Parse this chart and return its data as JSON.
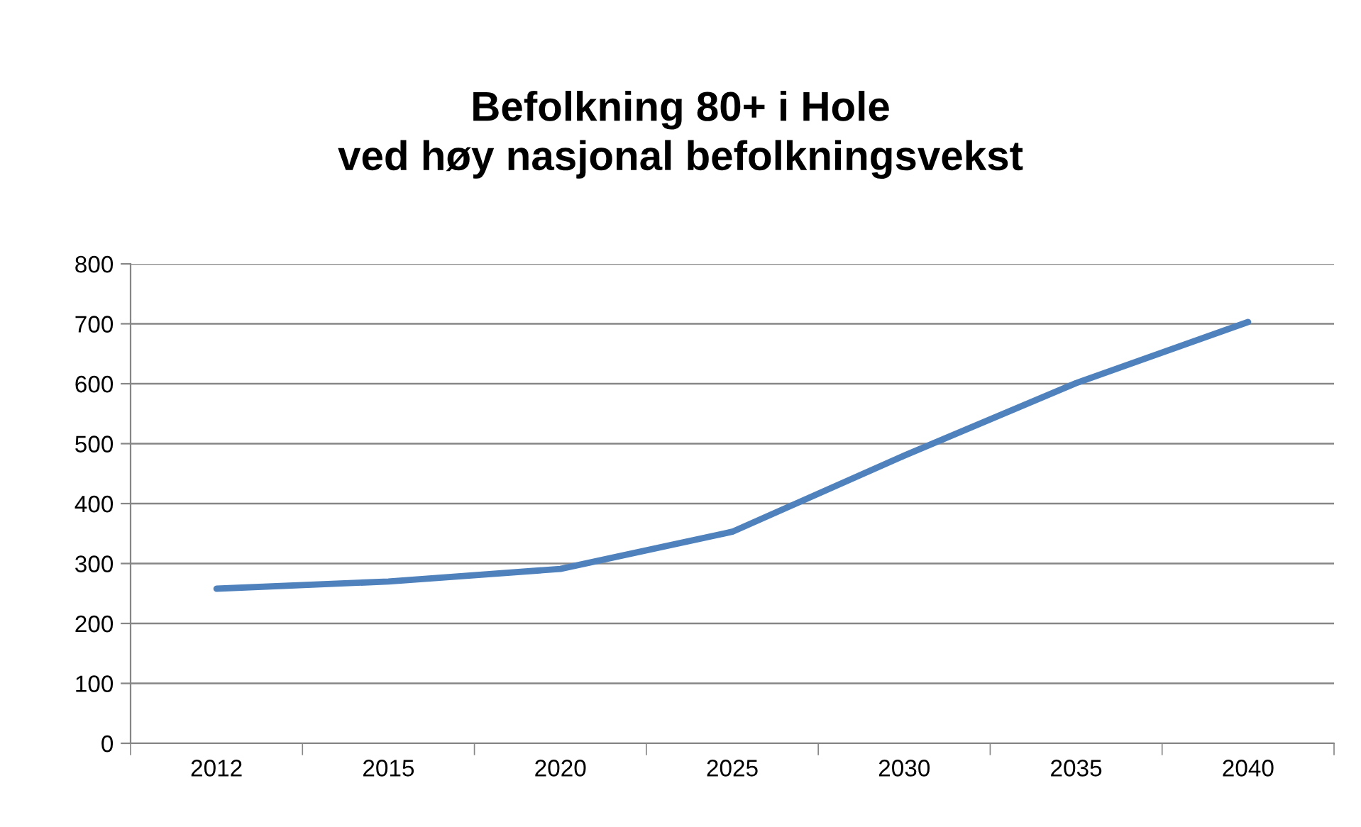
{
  "chart_data": {
    "type": "line",
    "title": "Befolkning 80+ i Hole\nved høy nasjonal befolkningsvekst",
    "categories": [
      "2012",
      "2015",
      "2020",
      "2025",
      "2030",
      "2035",
      "2040"
    ],
    "series": [
      {
        "color": "#4f81bd",
        "values": [
          258,
          270,
          291,
          353,
          480,
          601,
          703
        ]
      }
    ],
    "ylim": [
      0,
      800
    ],
    "yticks": [
      0,
      100,
      200,
      300,
      400,
      500,
      600,
      700,
      800
    ],
    "grid": "y",
    "legend": false,
    "marker": "none",
    "line_style": "solid"
  }
}
